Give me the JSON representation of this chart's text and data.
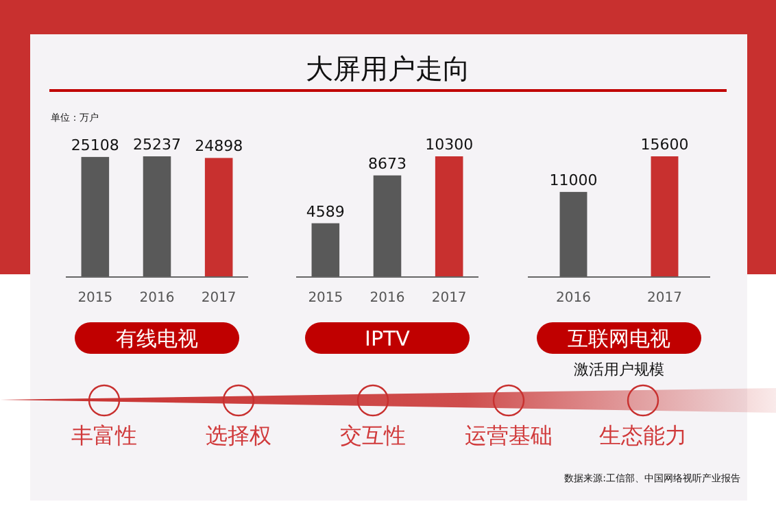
{
  "chart_data": [
    {
      "type": "other",
      "title": "大屏用户走向",
      "annotations": [
        "单位：万户"
      ]
    },
    {
      "type": "bar",
      "xlabel": "有线电视",
      "categories": [
        "2015",
        "2016",
        "2017"
      ],
      "values": [
        25108,
        25237,
        24898
      ],
      "colors": [
        "#595959",
        "#595959",
        "#c8302f"
      ],
      "data_labels": true,
      "tick_labels": "x"
    },
    {
      "type": "bar",
      "xlabel": "IPTV",
      "categories": [
        "2015",
        "2016",
        "2017"
      ],
      "values": [
        4589,
        8673,
        10300
      ],
      "colors": [
        "#595959",
        "#595959",
        "#c8302f"
      ],
      "data_labels": true,
      "tick_labels": "x"
    },
    {
      "type": "bar",
      "xlabel": "互联网电视",
      "annotations": [
        "激活用户规模"
      ],
      "categories": [
        "2016",
        "2017"
      ],
      "values": [
        11000,
        15600
      ],
      "colors": [
        "#595959",
        "#c8302f"
      ],
      "data_labels": true,
      "tick_labels": "x"
    },
    {
      "type": "other",
      "annotations": [
        "丰富性",
        "选择权",
        "交互性",
        "运营基础",
        "生态能力",
        "数据来源:工信部、中国网络视听产业报告"
      ]
    }
  ]
}
